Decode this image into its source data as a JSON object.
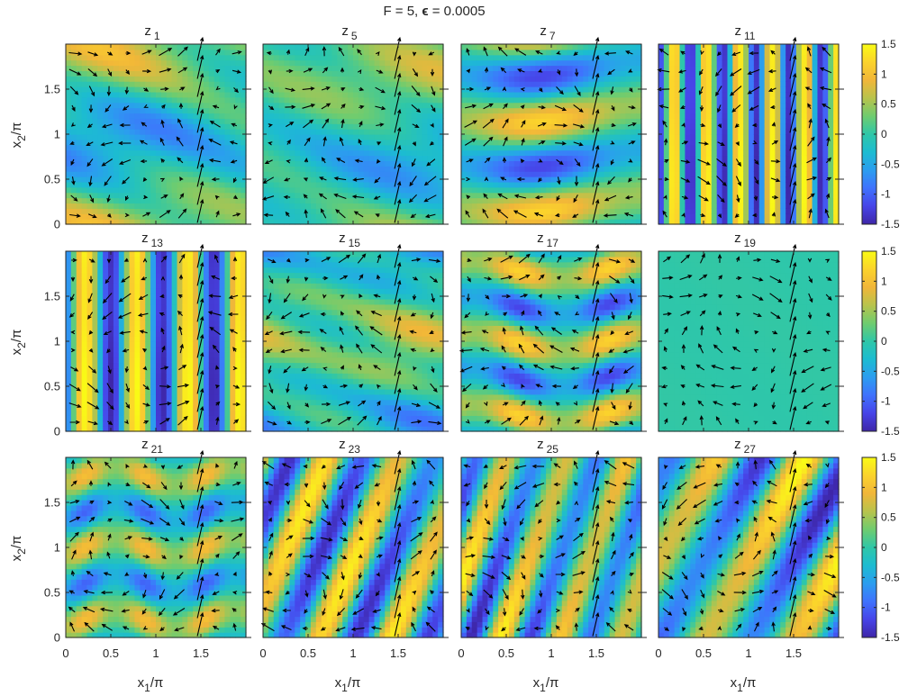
{
  "figure": {
    "suptitle": "F = 5,    ",
    "suptitle_eps_symbol": "ϵ",
    "suptitle_eps_value": " = 0.0005"
  },
  "colormap": {
    "name": "parula",
    "stops": [
      "#3e26a8",
      "#4744e8",
      "#3f72fd",
      "#2b9def",
      "#1cbcd1",
      "#2fc7a8",
      "#6fcc6f",
      "#b8c34c",
      "#f1b639",
      "#fbd32c",
      "#f9fb15"
    ]
  },
  "arrow_color": "#000000",
  "chart_data": {
    "type": "heatmap",
    "title": "F = 5,    ϵ = 0.0005",
    "xlabel": "x_1/π",
    "ylabel": "x_2/π",
    "xlim": [
      0,
      2
    ],
    "ylim": [
      0,
      2
    ],
    "clim": [
      -1.5,
      1.5
    ],
    "x_tick_labels": [
      "0",
      "0.5",
      "1",
      "1.5"
    ],
    "y_tick_labels": [
      "0",
      "0.5",
      "1",
      "1.5"
    ],
    "colorbar_tick_labels": [
      "1.5",
      "1",
      "0.5",
      "0",
      "-0.5",
      "-1",
      "-1.5"
    ],
    "colorbar_tick_values": [
      1.5,
      1,
      0.5,
      0,
      -0.5,
      -1,
      -1.5
    ],
    "panels": [
      {
        "label": "z",
        "sub": "1",
        "kind": "blobs",
        "kx": 1,
        "ky": 2,
        "amp": 1.0,
        "seed": 1
      },
      {
        "label": "z",
        "sub": "5",
        "kind": "blobs",
        "kx": 1,
        "ky": 2,
        "amp": 0.8,
        "seed": 5
      },
      {
        "label": "z",
        "sub": "7",
        "kind": "waves",
        "kx": 1,
        "ky": 4,
        "amp": 1.2,
        "seed": 7
      },
      {
        "label": "z",
        "sub": "11",
        "kind": "stripes",
        "kx": 11,
        "ky": 0,
        "amp": 1.5,
        "seed": 11
      },
      {
        "label": "z",
        "sub": "13",
        "kind": "stripes",
        "kx": 7,
        "ky": 0,
        "amp": 1.5,
        "seed": 13
      },
      {
        "label": "z",
        "sub": "15",
        "kind": "blobs",
        "kx": 2,
        "ky": 3,
        "amp": 0.9,
        "seed": 15
      },
      {
        "label": "z",
        "sub": "17",
        "kind": "waves",
        "kx": 2,
        "ky": 5,
        "amp": 1.2,
        "seed": 17
      },
      {
        "label": "z",
        "sub": "19",
        "kind": "flat",
        "kx": 0,
        "ky": 0,
        "amp": 0.05,
        "seed": 19
      },
      {
        "label": "z",
        "sub": "21",
        "kind": "waves",
        "kx": 3,
        "ky": 5,
        "amp": 1.0,
        "seed": 21
      },
      {
        "label": "z",
        "sub": "23",
        "kind": "oblique",
        "kx": 5,
        "ky": 2,
        "amp": 1.4,
        "seed": 23
      },
      {
        "label": "z",
        "sub": "25",
        "kind": "oblique",
        "kx": 6,
        "ky": 2,
        "amp": 1.5,
        "seed": 25
      },
      {
        "label": "z",
        "sub": "27",
        "kind": "oblique",
        "kx": 4,
        "ky": 2,
        "amp": 1.5,
        "seed": 27
      }
    ]
  }
}
